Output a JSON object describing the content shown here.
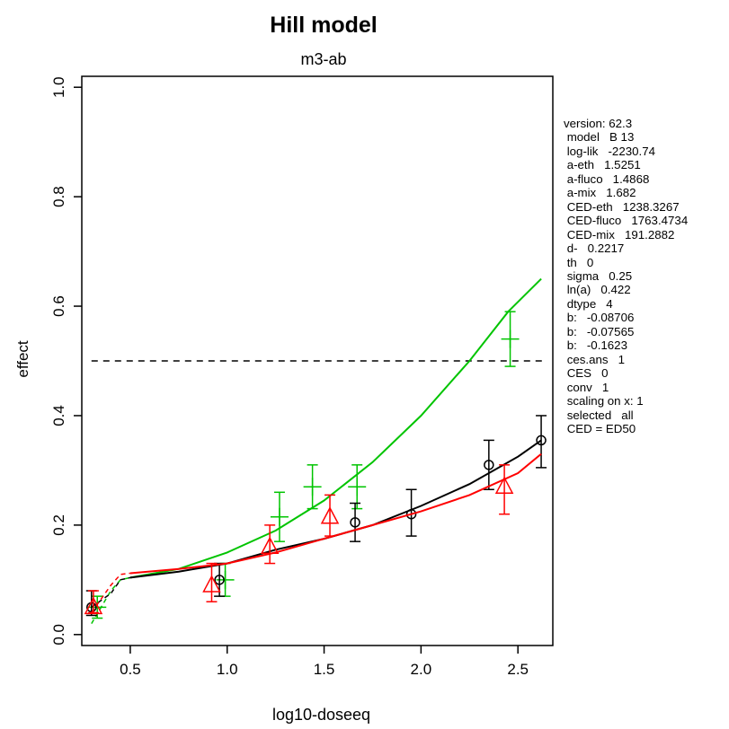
{
  "chart_data": {
    "type": "line",
    "title": "Hill model",
    "subtitle": "m3-ab",
    "xlabel": "log10-doseeq",
    "ylabel": "effect",
    "xlim": [
      0.25,
      2.68
    ],
    "ylim": [
      -0.02,
      1.02
    ],
    "x_ticks": [
      {
        "value": 0.5,
        "label": "0.5"
      },
      {
        "value": 1.0,
        "label": "1.0"
      },
      {
        "value": 1.5,
        "label": "1.5"
      },
      {
        "value": 2.0,
        "label": "2.0"
      },
      {
        "value": 2.5,
        "label": "2.5"
      }
    ],
    "y_ticks": [
      {
        "value": 0.0,
        "label": "0.0"
      },
      {
        "value": 0.2,
        "label": "0.2"
      },
      {
        "value": 0.4,
        "label": "0.4"
      },
      {
        "value": 0.6,
        "label": "0.6"
      },
      {
        "value": 0.8,
        "label": "0.8"
      },
      {
        "value": 1.0,
        "label": "1.0"
      }
    ],
    "reference_line": {
      "y": 0.5,
      "style": "dashed",
      "color": "#000000"
    },
    "series": [
      {
        "color": "#00c400",
        "marker": "plus",
        "curve": [
          [
            0.3,
            0.02
          ],
          [
            0.4,
            0.08
          ],
          [
            0.45,
            0.1
          ],
          [
            0.5,
            0.104
          ],
          [
            0.75,
            0.12
          ],
          [
            1.0,
            0.15
          ],
          [
            1.25,
            0.19
          ],
          [
            1.5,
            0.245
          ],
          [
            1.75,
            0.315
          ],
          [
            2.0,
            0.4
          ],
          [
            2.25,
            0.5
          ],
          [
            2.45,
            0.59
          ],
          [
            2.62,
            0.65
          ]
        ],
        "points": [
          {
            "x": 0.33,
            "y": 0.05,
            "lo": 0.03,
            "hi": 0.07
          },
          {
            "x": 0.99,
            "y": 0.1,
            "lo": 0.07,
            "hi": 0.13
          },
          {
            "x": 1.27,
            "y": 0.215,
            "lo": 0.17,
            "hi": 0.26
          },
          {
            "x": 1.44,
            "y": 0.27,
            "lo": 0.23,
            "hi": 0.31
          },
          {
            "x": 1.67,
            "y": 0.27,
            "lo": 0.23,
            "hi": 0.31
          },
          {
            "x": 2.46,
            "y": 0.54,
            "lo": 0.49,
            "hi": 0.59
          }
        ]
      },
      {
        "color": "#000000",
        "marker": "circle",
        "curve": [
          [
            0.3,
            0.05
          ],
          [
            0.4,
            0.075
          ],
          [
            0.45,
            0.1
          ],
          [
            0.5,
            0.104
          ],
          [
            0.75,
            0.115
          ],
          [
            1.0,
            0.13
          ],
          [
            1.25,
            0.155
          ],
          [
            1.5,
            0.175
          ],
          [
            1.75,
            0.2
          ],
          [
            2.0,
            0.235
          ],
          [
            2.25,
            0.275
          ],
          [
            2.5,
            0.325
          ],
          [
            2.62,
            0.355
          ]
        ],
        "points": [
          {
            "x": 0.3,
            "y": 0.05,
            "lo": 0.035,
            "hi": 0.08
          },
          {
            "x": 0.96,
            "y": 0.1,
            "lo": 0.07,
            "hi": 0.13
          },
          {
            "x": 1.66,
            "y": 0.205,
            "lo": 0.17,
            "hi": 0.24
          },
          {
            "x": 1.95,
            "y": 0.22,
            "lo": 0.18,
            "hi": 0.265
          },
          {
            "x": 2.35,
            "y": 0.31,
            "lo": 0.265,
            "hi": 0.355
          },
          {
            "x": 2.62,
            "y": 0.355,
            "lo": 0.305,
            "hi": 0.4
          }
        ]
      },
      {
        "color": "#ff0000",
        "marker": "triangle",
        "curve": [
          [
            0.3,
            0.04
          ],
          [
            0.4,
            0.09
          ],
          [
            0.45,
            0.11
          ],
          [
            0.5,
            0.112
          ],
          [
            0.75,
            0.12
          ],
          [
            1.0,
            0.13
          ],
          [
            1.25,
            0.15
          ],
          [
            1.5,
            0.175
          ],
          [
            1.75,
            0.2
          ],
          [
            2.0,
            0.225
          ],
          [
            2.25,
            0.255
          ],
          [
            2.5,
            0.295
          ],
          [
            2.62,
            0.33
          ]
        ],
        "points": [
          {
            "x": 0.31,
            "y": 0.05,
            "lo": 0.04,
            "hi": 0.08
          },
          {
            "x": 0.92,
            "y": 0.09,
            "lo": 0.06,
            "hi": 0.13
          },
          {
            "x": 1.22,
            "y": 0.16,
            "lo": 0.13,
            "hi": 0.2
          },
          {
            "x": 1.53,
            "y": 0.215,
            "lo": 0.18,
            "hi": 0.255
          },
          {
            "x": 2.43,
            "y": 0.27,
            "lo": 0.22,
            "hi": 0.31
          }
        ]
      }
    ]
  },
  "info_lines": [
    "version: 62.3",
    " model   B 13",
    " log-lik   -2230.74",
    " a-eth   1.5251",
    " a-fluco   1.4868",
    " a-mix   1.682",
    " CED-eth   1238.3267",
    " CED-fluco   1763.4734",
    " CED-mix   191.2882",
    " d-   0.2217",
    " th   0",
    " sigma   0.25",
    " ln(a)   0.422",
    " dtype   4",
    " b:   -0.08706",
    " b:   -0.07565",
    " b:   -0.1623",
    " ces.ans   1",
    " CES   0",
    " conv   1",
    " scaling on x: 1",
    " selected   all",
    " CED = ED50"
  ]
}
